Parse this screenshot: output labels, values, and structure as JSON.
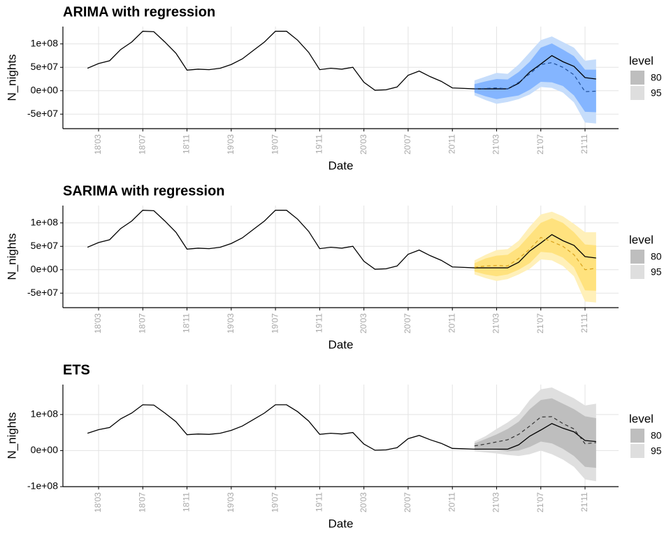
{
  "chart_data": [
    {
      "type": "line",
      "title": "ARIMA with regression",
      "xlabel": "Date",
      "ylabel": "N_nights",
      "x": [
        "18'02",
        "18'03",
        "18'04",
        "18'05",
        "18'06",
        "18'07",
        "18'08",
        "18'09",
        "18'10",
        "18'11",
        "18'12",
        "19'01",
        "19'02",
        "19'03",
        "19'04",
        "19'05",
        "19'06",
        "19'07",
        "19'08",
        "19'09",
        "19'10",
        "19'11",
        "19'12",
        "20'01",
        "20'02",
        "20'03",
        "20'04",
        "20'05",
        "20'06",
        "20'07",
        "20'08",
        "20'09",
        "20'10",
        "20'11",
        "20'12",
        "21'01",
        "21'02",
        "21'03",
        "21'04",
        "21'05",
        "21'06",
        "21'07",
        "21'08",
        "21'09",
        "21'10",
        "21'11",
        "21'12"
      ],
      "xticks": [
        "18'03",
        "18'07",
        "18'11",
        "19'03",
        "19'07",
        "19'11",
        "20'03",
        "20'07",
        "20'11",
        "21'03",
        "21'07",
        "21'11"
      ],
      "ylim": [
        -81000000.0,
        137000000.0
      ],
      "yticks": [
        {
          "value": -50000000.0,
          "label": "-5e+07"
        },
        {
          "value": 0,
          "label": "0e+00"
        },
        {
          "value": 50000000.0,
          "label": "5e+07"
        },
        {
          "value": 100000000.0,
          "label": "1e+08"
        }
      ],
      "grid": true,
      "actual": {
        "color": "#000000",
        "values": [
          48000000.0,
          58000000.0,
          64000000.0,
          88000000.0,
          104000000.0,
          127000000.0,
          126000000.0,
          104000000.0,
          80000000.0,
          44000000.0,
          46000000.0,
          45000000.0,
          48000000.0,
          56000000.0,
          68000000.0,
          86000000.0,
          104000000.0,
          127000000.0,
          127000000.0,
          108000000.0,
          82000000.0,
          45000000.0,
          48000000.0,
          46000000.0,
          50000000.0,
          18000000.0,
          1000000.0,
          2000000.0,
          8000000.0,
          33000000.0,
          42000000.0,
          30000000.0,
          20000000.0,
          6000000.0,
          5000000.0,
          4000000.0,
          4000000.0,
          4000000.0,
          4000000.0,
          16000000.0,
          40000000.0,
          57000000.0,
          75000000.0,
          62000000.0,
          52000000.0,
          28000000.0,
          25000000.0
        ]
      },
      "forecast_x": [
        "21'01",
        "21'02",
        "21'03",
        "21'04",
        "21'05",
        "21'06",
        "21'07",
        "21'08",
        "21'09",
        "21'10",
        "21'11",
        "21'12"
      ],
      "forecast": {
        "color": "#1f4e99",
        "dashed": true,
        "values": [
          4000000.0,
          5000000.0,
          6000000.0,
          4000000.0,
          18000000.0,
          36000000.0,
          56000000.0,
          60000000.0,
          50000000.0,
          34000000.0,
          -2000000.0,
          -1000000.0
        ]
      },
      "legend_title": "level",
      "intervals": [
        {
          "level": 80,
          "color": "#84b5ff",
          "key_color": "#bebebe",
          "lower": [
            -4000000.0,
            -12000000.0,
            -18000000.0,
            -14000000.0,
            -10000000.0,
            2000000.0,
            19000000.0,
            18000000.0,
            10000000.0,
            -10000000.0,
            -45000000.0,
            -46000000.0
          ],
          "upper": [
            14000000.0,
            20000000.0,
            25000000.0,
            24000000.0,
            40000000.0,
            62000000.0,
            92000000.0,
            101000000.0,
            88000000.0,
            74000000.0,
            45000000.0,
            45000000.0
          ]
        },
        {
          "level": 95,
          "color": "#c6ddfb",
          "key_color": "#dedede",
          "lower": [
            -10000000.0,
            -20000000.0,
            -28000000.0,
            -24000000.0,
            -18000000.0,
            -8000000.0,
            8000000.0,
            6000000.0,
            -4000000.0,
            -25000000.0,
            -68000000.0,
            -70000000.0
          ],
          "upper": [
            22000000.0,
            30000000.0,
            38000000.0,
            36000000.0,
            56000000.0,
            82000000.0,
            108000000.0,
            116000000.0,
            104000000.0,
            92000000.0,
            64000000.0,
            67000000.0
          ]
        }
      ]
    },
    {
      "type": "line",
      "title": "SARIMA with regression",
      "xlabel": "Date",
      "ylabel": "N_nights",
      "x": [
        "18'02",
        "18'03",
        "18'04",
        "18'05",
        "18'06",
        "18'07",
        "18'08",
        "18'09",
        "18'10",
        "18'11",
        "18'12",
        "19'01",
        "19'02",
        "19'03",
        "19'04",
        "19'05",
        "19'06",
        "19'07",
        "19'08",
        "19'09",
        "19'10",
        "19'11",
        "19'12",
        "20'01",
        "20'02",
        "20'03",
        "20'04",
        "20'05",
        "20'06",
        "20'07",
        "20'08",
        "20'09",
        "20'10",
        "20'11",
        "20'12",
        "21'01",
        "21'02",
        "21'03",
        "21'04",
        "21'05",
        "21'06",
        "21'07",
        "21'08",
        "21'09",
        "21'10",
        "21'11",
        "21'12"
      ],
      "xticks": [
        "18'03",
        "18'07",
        "18'11",
        "19'03",
        "19'07",
        "19'11",
        "20'03",
        "20'07",
        "20'11",
        "21'03",
        "21'07",
        "21'11"
      ],
      "ylim": [
        -81000000.0,
        137000000.0
      ],
      "yticks": [
        {
          "value": -50000000.0,
          "label": "-5e+07"
        },
        {
          "value": 0,
          "label": "0e+00"
        },
        {
          "value": 50000000.0,
          "label": "5e+07"
        },
        {
          "value": 100000000.0,
          "label": "1e+08"
        }
      ],
      "grid": true,
      "actual": {
        "color": "#000000",
        "values": [
          48000000.0,
          58000000.0,
          64000000.0,
          88000000.0,
          104000000.0,
          127000000.0,
          126000000.0,
          104000000.0,
          80000000.0,
          44000000.0,
          46000000.0,
          45000000.0,
          48000000.0,
          56000000.0,
          68000000.0,
          86000000.0,
          104000000.0,
          127000000.0,
          127000000.0,
          108000000.0,
          82000000.0,
          45000000.0,
          48000000.0,
          46000000.0,
          50000000.0,
          18000000.0,
          1000000.0,
          2000000.0,
          8000000.0,
          33000000.0,
          42000000.0,
          30000000.0,
          20000000.0,
          6000000.0,
          5000000.0,
          4000000.0,
          4000000.0,
          4000000.0,
          4000000.0,
          16000000.0,
          40000000.0,
          57000000.0,
          75000000.0,
          62000000.0,
          52000000.0,
          28000000.0,
          25000000.0
        ]
      },
      "forecast_x": [
        "21'01",
        "21'02",
        "21'03",
        "21'04",
        "21'05",
        "21'06",
        "21'07",
        "21'08",
        "21'09",
        "21'10",
        "21'11",
        "21'12"
      ],
      "forecast": {
        "color": "#d9a21b",
        "dashed": true,
        "values": [
          5000000.0,
          8000000.0,
          9000000.0,
          8000000.0,
          24000000.0,
          44000000.0,
          69000000.0,
          60000000.0,
          50000000.0,
          32000000.0,
          0,
          3000000.0
        ]
      },
      "legend_title": "level",
      "intervals": [
        {
          "level": 80,
          "color": "#ffe27e",
          "key_color": "#bebebe",
          "lower": [
            -4000000.0,
            -10000000.0,
            -14000000.0,
            -10000000.0,
            0,
            14000000.0,
            38000000.0,
            36000000.0,
            26000000.0,
            5000000.0,
            -44000000.0,
            -45000000.0
          ],
          "upper": [
            14000000.0,
            24000000.0,
            30000000.0,
            32000000.0,
            48000000.0,
            74000000.0,
            100000000.0,
            110000000.0,
            100000000.0,
            80000000.0,
            54000000.0,
            52000000.0
          ]
        },
        {
          "level": 95,
          "color": "#fff0b9",
          "key_color": "#dedede",
          "lower": [
            -10000000.0,
            -18000000.0,
            -24000000.0,
            -20000000.0,
            -10000000.0,
            2000000.0,
            22000000.0,
            20000000.0,
            8000000.0,
            -14000000.0,
            -68000000.0,
            -70000000.0
          ],
          "upper": [
            20000000.0,
            32000000.0,
            42000000.0,
            44000000.0,
            62000000.0,
            92000000.0,
            118000000.0,
            124000000.0,
            114000000.0,
            98000000.0,
            80000000.0,
            80000000.0
          ]
        }
      ]
    },
    {
      "type": "line",
      "title": "ETS",
      "xlabel": "Date",
      "ylabel": "N_nights",
      "x": [
        "18'02",
        "18'03",
        "18'04",
        "18'05",
        "18'06",
        "18'07",
        "18'08",
        "18'09",
        "18'10",
        "18'11",
        "18'12",
        "19'01",
        "19'02",
        "19'03",
        "19'04",
        "19'05",
        "19'06",
        "19'07",
        "19'08",
        "19'09",
        "19'10",
        "19'11",
        "19'12",
        "20'01",
        "20'02",
        "20'03",
        "20'04",
        "20'05",
        "20'06",
        "20'07",
        "20'08",
        "20'09",
        "20'10",
        "20'11",
        "20'12",
        "21'01",
        "21'02",
        "21'03",
        "21'04",
        "21'05",
        "21'06",
        "21'07",
        "21'08",
        "21'09",
        "21'10",
        "21'11",
        "21'12"
      ],
      "xticks": [
        "18'03",
        "18'07",
        "18'11",
        "19'03",
        "19'07",
        "19'11",
        "20'03",
        "20'07",
        "20'11",
        "21'03",
        "21'07",
        "21'11"
      ],
      "ylim": [
        -100000000.0,
        183000000.0
      ],
      "yticks": [
        {
          "value": -100000000.0,
          "label": "-1e+08"
        },
        {
          "value": 0,
          "label": "0e+00"
        },
        {
          "value": 100000000.0,
          "label": "1e+08"
        }
      ],
      "grid": true,
      "actual": {
        "color": "#000000",
        "values": [
          48000000.0,
          58000000.0,
          64000000.0,
          88000000.0,
          104000000.0,
          127000000.0,
          126000000.0,
          104000000.0,
          80000000.0,
          44000000.0,
          46000000.0,
          45000000.0,
          48000000.0,
          56000000.0,
          68000000.0,
          86000000.0,
          104000000.0,
          127000000.0,
          127000000.0,
          108000000.0,
          82000000.0,
          45000000.0,
          48000000.0,
          46000000.0,
          50000000.0,
          18000000.0,
          1000000.0,
          2000000.0,
          8000000.0,
          33000000.0,
          42000000.0,
          30000000.0,
          20000000.0,
          6000000.0,
          5000000.0,
          4000000.0,
          4000000.0,
          4000000.0,
          4000000.0,
          16000000.0,
          40000000.0,
          57000000.0,
          75000000.0,
          62000000.0,
          52000000.0,
          28000000.0,
          25000000.0
        ]
      },
      "forecast_x": [
        "21'01",
        "21'02",
        "21'03",
        "21'04",
        "21'05",
        "21'06",
        "21'07",
        "21'08",
        "21'09",
        "21'10",
        "21'11",
        "21'12"
      ],
      "forecast": {
        "color": "#333333",
        "dashed": true,
        "values": [
          13000000.0,
          18000000.0,
          24000000.0,
          30000000.0,
          45000000.0,
          68000000.0,
          93000000.0,
          94000000.0,
          75000000.0,
          60000000.0,
          19000000.0,
          22000000.0
        ]
      },
      "legend_title": "level",
      "intervals": [
        {
          "level": 80,
          "color": "#bebebe",
          "key_color": "#bebebe",
          "lower": [
            5000000.0,
            4000000.0,
            2000000.0,
            -2000000.0,
            0,
            10000000.0,
            25000000.0,
            20000000.0,
            5000000.0,
            -15000000.0,
            -45000000.0,
            -48000000.0
          ],
          "upper": [
            20000000.0,
            32000000.0,
            45000000.0,
            60000000.0,
            80000000.0,
            115000000.0,
            140000000.0,
            145000000.0,
            130000000.0,
            115000000.0,
            95000000.0,
            90000000.0
          ]
        },
        {
          "level": 95,
          "color": "#dfdfdf",
          "key_color": "#dedede",
          "lower": [
            -2000000.0,
            -5000000.0,
            -8000000.0,
            -12000000.0,
            -15000000.0,
            -10000000.0,
            0,
            -10000000.0,
            -25000000.0,
            -45000000.0,
            -80000000.0,
            -85000000.0
          ],
          "upper": [
            25000000.0,
            40000000.0,
            60000000.0,
            78000000.0,
            100000000.0,
            140000000.0,
            170000000.0,
            175000000.0,
            160000000.0,
            145000000.0,
            125000000.0,
            130000000.0
          ]
        }
      ]
    }
  ]
}
